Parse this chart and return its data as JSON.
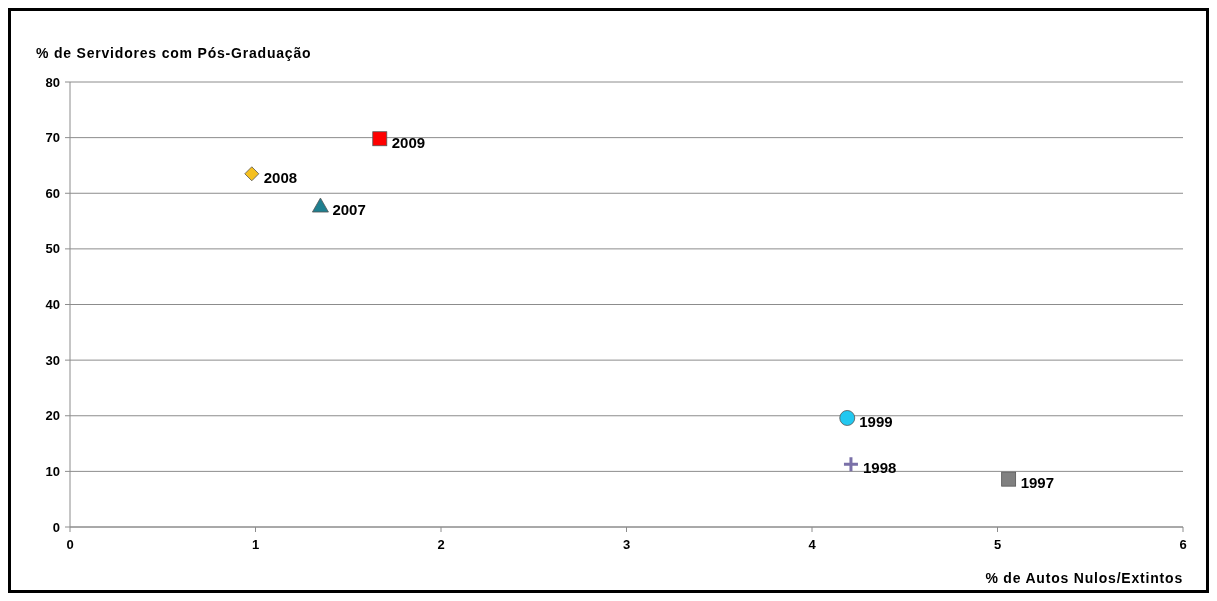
{
  "chart_data": {
    "type": "scatter",
    "title": "% de Servidores com Pós-Graduação",
    "xlabel": "% de Autos Nulos/Extintos",
    "xlim": [
      0,
      6
    ],
    "xticks": [
      0,
      1,
      2,
      3,
      4,
      5,
      6
    ],
    "ylim": [
      0,
      80
    ],
    "yticks": [
      0,
      10,
      20,
      30,
      40,
      50,
      60,
      70,
      80
    ],
    "grid": "y",
    "series": [
      {
        "name": "1997",
        "color": "#808080",
        "marker": "square",
        "x": [
          5.06
        ],
        "values": [
          8.6
        ]
      },
      {
        "name": "1998",
        "color": "#7a70a8",
        "marker": "cross",
        "x": [
          4.21
        ],
        "values": [
          11.3
        ]
      },
      {
        "name": "1999",
        "color": "#22c8f0",
        "marker": "circle",
        "x": [
          4.19
        ],
        "values": [
          19.6
        ]
      },
      {
        "name": "2007",
        "color": "#1f7f8f",
        "marker": "triangle",
        "x": [
          1.35
        ],
        "values": [
          57.7
        ]
      },
      {
        "name": "2008",
        "color": "#f5c020",
        "marker": "diamond",
        "x": [
          0.98
        ],
        "values": [
          63.5
        ]
      },
      {
        "name": "2009",
        "color": "#ff0000",
        "marker": "square",
        "x": [
          1.67
        ],
        "values": [
          69.8
        ]
      }
    ]
  }
}
